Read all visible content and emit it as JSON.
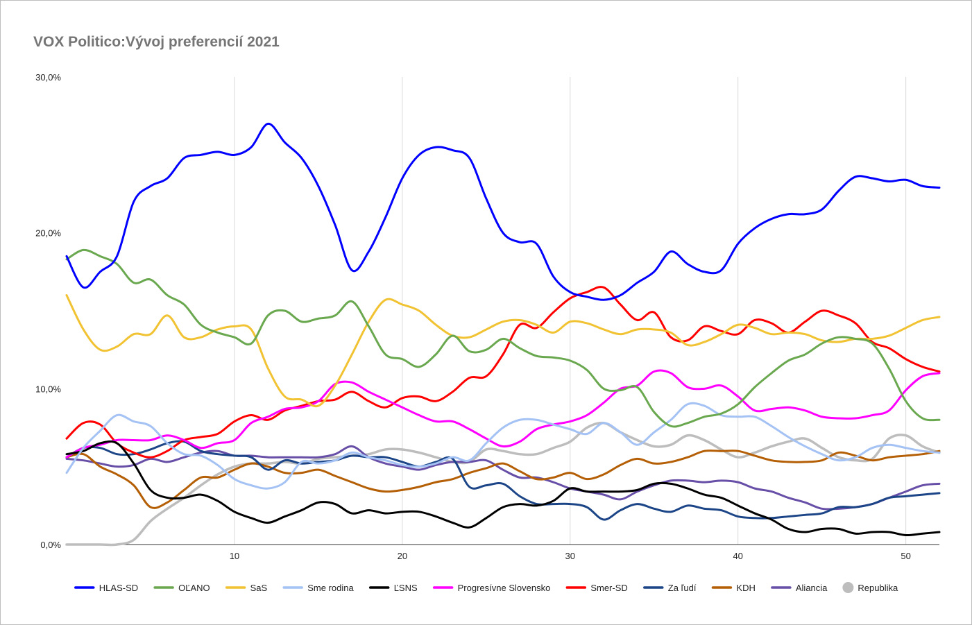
{
  "chart_data": {
    "type": "line",
    "title": "VOX Politico:Vývoj preferencií 2021",
    "xlabel": "",
    "ylabel": "",
    "xlim": [
      0,
      52
    ],
    "ylim": [
      0,
      30
    ],
    "x_ticks": [
      "10",
      "20",
      "30",
      "40",
      "50"
    ],
    "y_ticks": [
      "0,0%",
      "10,0%",
      "20,0%",
      "30,0%"
    ],
    "grid": "vertical",
    "legend_position": "bottom",
    "series": [
      {
        "name": "HLAS-SD",
        "color": "#0000ff",
        "marker": "line",
        "x": [
          0,
          1,
          2,
          3,
          4,
          5,
          6,
          7,
          8,
          9,
          10,
          11,
          12,
          13,
          14,
          15,
          16,
          17,
          18,
          19,
          20,
          21,
          22,
          23,
          24,
          25,
          26,
          27,
          28,
          29,
          30,
          31,
          32,
          33,
          34,
          35,
          36,
          37,
          38,
          39,
          40,
          41,
          42,
          43,
          44,
          45,
          46,
          47,
          48,
          49,
          50,
          51,
          52
        ],
        "y": [
          18.5,
          16.5,
          17.5,
          18.5,
          22,
          23,
          23.5,
          24.8,
          25,
          25.2,
          25,
          25.5,
          27,
          25.8,
          24.8,
          23,
          20.5,
          17.6,
          18.8,
          21,
          23.5,
          25,
          25.5,
          25.3,
          24.8,
          22.2,
          20,
          19.4,
          19.3,
          17.2,
          16.2,
          15.9,
          15.7,
          16,
          16.8,
          17.5,
          18.8,
          18,
          17.5,
          17.6,
          19.3,
          20.3,
          20.9,
          21.2,
          21.2,
          21.5,
          22.7,
          23.6,
          23.5,
          23.3,
          23.4,
          23,
          22.9
        ]
      },
      {
        "name": "OĽANO",
        "color": "#6aa84f",
        "marker": "line",
        "x": [
          0,
          1,
          2,
          3,
          4,
          5,
          6,
          7,
          8,
          9,
          10,
          11,
          12,
          13,
          14,
          15,
          16,
          17,
          18,
          19,
          20,
          21,
          22,
          23,
          24,
          25,
          26,
          27,
          28,
          29,
          30,
          31,
          32,
          33,
          34,
          35,
          36,
          37,
          38,
          39,
          40,
          41,
          42,
          43,
          44,
          45,
          46,
          47,
          48,
          49,
          50,
          51,
          52
        ],
        "y": [
          18.3,
          18.9,
          18.5,
          18,
          16.8,
          17,
          16,
          15.4,
          14.1,
          13.6,
          13.3,
          12.9,
          14.7,
          15,
          14.3,
          14.5,
          14.7,
          15.6,
          14,
          12.2,
          11.9,
          11.4,
          12.2,
          13.4,
          12.4,
          12.5,
          13.2,
          12.6,
          12.1,
          12,
          11.8,
          11.2,
          10,
          9.9,
          10.1,
          8.5,
          7.6,
          7.8,
          8.2,
          8.4,
          9,
          10.1,
          11,
          11.8,
          12.2,
          12.9,
          13.3,
          13.2,
          12.9,
          11.3,
          9.2,
          8.1,
          8
        ]
      },
      {
        "name": "SaS",
        "color": "#f1c232",
        "marker": "line",
        "x": [
          0,
          1,
          2,
          3,
          4,
          5,
          6,
          7,
          8,
          9,
          10,
          11,
          12,
          13,
          14,
          15,
          16,
          17,
          18,
          19,
          20,
          21,
          22,
          23,
          24,
          25,
          26,
          27,
          28,
          29,
          30,
          31,
          32,
          33,
          34,
          35,
          36,
          37,
          38,
          39,
          40,
          41,
          42,
          43,
          44,
          45,
          46,
          47,
          48,
          49,
          50,
          51,
          52
        ],
        "y": [
          16,
          13.8,
          12.5,
          12.7,
          13.5,
          13.5,
          14.7,
          13.3,
          13.3,
          13.8,
          14,
          13.8,
          11.3,
          9.5,
          9.3,
          8.9,
          10.2,
          12.2,
          14.3,
          15.7,
          15.4,
          15,
          14.1,
          13.4,
          13.3,
          13.8,
          14.3,
          14.4,
          14.1,
          13.6,
          14.3,
          14.2,
          13.8,
          13.5,
          13.8,
          13.8,
          13.6,
          12.8,
          13,
          13.5,
          14.1,
          13.9,
          13.5,
          13.6,
          13.5,
          13.1,
          13,
          13.2,
          13.2,
          13.4,
          13.9,
          14.4,
          14.6
        ]
      },
      {
        "name": "Sme rodina",
        "color": "#a4c2f4",
        "marker": "line",
        "x": [
          0,
          1,
          2,
          3,
          4,
          5,
          6,
          7,
          8,
          9,
          10,
          11,
          12,
          13,
          14,
          15,
          16,
          17,
          18,
          19,
          20,
          21,
          22,
          23,
          24,
          25,
          26,
          27,
          28,
          29,
          30,
          31,
          32,
          33,
          34,
          35,
          36,
          37,
          38,
          39,
          40,
          41,
          42,
          43,
          44,
          45,
          46,
          47,
          48,
          49,
          50,
          51,
          52
        ],
        "y": [
          4.6,
          6.2,
          7.3,
          8.3,
          7.9,
          7.6,
          6.5,
          5.8,
          5.7,
          5.1,
          4.2,
          3.8,
          3.6,
          4,
          5.3,
          5.2,
          5.4,
          5.9,
          5.6,
          5.4,
          5.1,
          5,
          5.2,
          5.6,
          5.4,
          6.5,
          7.5,
          8,
          8,
          7.7,
          7.4,
          7.1,
          7.8,
          7.2,
          6.4,
          7.2,
          8,
          9,
          8.9,
          8.3,
          8.2,
          8.2,
          7.6,
          6.9,
          6.3,
          5.8,
          5.4,
          5.6,
          6.2,
          6.4,
          6.2,
          6,
          5.9
        ]
      },
      {
        "name": "ĽSNS",
        "color": "#000000",
        "marker": "line",
        "x": [
          0,
          1,
          2,
          3,
          4,
          5,
          6,
          7,
          8,
          9,
          10,
          11,
          12,
          13,
          14,
          15,
          16,
          17,
          18,
          19,
          20,
          21,
          22,
          23,
          24,
          25,
          26,
          27,
          28,
          29,
          30,
          31,
          32,
          33,
          34,
          35,
          36,
          37,
          38,
          39,
          40,
          41,
          42,
          43,
          44,
          45,
          46,
          47,
          48,
          49,
          50,
          51,
          52
        ],
        "y": [
          5.8,
          6,
          6.5,
          6.5,
          5.2,
          3.5,
          3,
          3,
          3.2,
          2.8,
          2.1,
          1.7,
          1.4,
          1.8,
          2.2,
          2.7,
          2.6,
          2,
          2.2,
          2,
          2.1,
          2.1,
          1.8,
          1.4,
          1.1,
          1.7,
          2.4,
          2.6,
          2.5,
          2.8,
          3.6,
          3.4,
          3.4,
          3.4,
          3.5,
          3.9,
          3.9,
          3.6,
          3.2,
          3,
          2.5,
          2,
          1.6,
          1,
          0.8,
          1,
          1,
          0.7,
          0.8,
          0.8,
          0.6,
          0.7,
          0.8
        ]
      },
      {
        "name": "Progresívne Slovensko",
        "color": "#ff00ff",
        "marker": "line",
        "x": [
          0,
          1,
          2,
          3,
          4,
          5,
          6,
          7,
          8,
          9,
          10,
          11,
          12,
          13,
          14,
          15,
          16,
          17,
          18,
          19,
          20,
          21,
          22,
          23,
          24,
          25,
          26,
          27,
          28,
          29,
          30,
          31,
          32,
          33,
          34,
          35,
          36,
          37,
          38,
          39,
          40,
          41,
          42,
          43,
          44,
          45,
          46,
          47,
          48,
          49,
          50,
          51,
          52
        ],
        "y": [
          5.6,
          6.2,
          6.4,
          6.7,
          6.7,
          6.7,
          7,
          6.7,
          6.2,
          6.5,
          6.7,
          7.8,
          8.2,
          8.7,
          8.8,
          9.2,
          10.3,
          10.4,
          9.8,
          9.3,
          8.8,
          8.3,
          7.9,
          7.9,
          7.4,
          6.8,
          6.3,
          6.6,
          7.4,
          7.7,
          7.9,
          8.3,
          9.1,
          10,
          10.2,
          11.1,
          11,
          10.1,
          10,
          10.2,
          9.5,
          8.6,
          8.7,
          8.8,
          8.6,
          8.2,
          8.1,
          8.1,
          8.3,
          8.6,
          9.9,
          10.8,
          11
        ]
      },
      {
        "name": "Smer-SD",
        "color": "#ff0000",
        "marker": "line",
        "x": [
          0,
          1,
          2,
          3,
          4,
          5,
          6,
          7,
          8,
          9,
          10,
          11,
          12,
          13,
          14,
          15,
          16,
          17,
          18,
          19,
          20,
          21,
          22,
          23,
          24,
          25,
          26,
          27,
          28,
          29,
          30,
          31,
          32,
          33,
          34,
          35,
          36,
          37,
          38,
          39,
          40,
          41,
          42,
          43,
          44,
          45,
          46,
          47,
          48,
          49,
          50,
          51,
          52
        ],
        "y": [
          6.8,
          7.8,
          7.7,
          6.5,
          5.9,
          5.6,
          6,
          6.7,
          6.9,
          7.1,
          7.9,
          8.3,
          8,
          8.6,
          8.9,
          9.2,
          9.3,
          9.8,
          9.2,
          8.8,
          9.4,
          9.5,
          9.2,
          9.8,
          10.7,
          10.8,
          12.2,
          14.1,
          13.9,
          14.9,
          15.8,
          16.2,
          16.5,
          15.4,
          14.4,
          14.9,
          13.3,
          13.1,
          14,
          13.7,
          13.5,
          14.4,
          14.2,
          13.6,
          14.3,
          15,
          14.7,
          14.2,
          13,
          12.6,
          11.9,
          11.4,
          11.1
        ]
      },
      {
        "name": "Za ľudí",
        "color": "#1c4587",
        "marker": "line",
        "x": [
          0,
          1,
          2,
          3,
          4,
          5,
          6,
          7,
          8,
          9,
          10,
          11,
          12,
          13,
          14,
          15,
          16,
          17,
          18,
          19,
          20,
          21,
          22,
          23,
          24,
          25,
          26,
          27,
          28,
          29,
          30,
          31,
          32,
          33,
          34,
          35,
          36,
          37,
          38,
          39,
          40,
          41,
          42,
          43,
          44,
          45,
          46,
          47,
          48,
          49,
          50,
          51,
          52
        ],
        "y": [
          5.6,
          6.2,
          6.2,
          5.8,
          5.8,
          6.1,
          6.5,
          6.6,
          6,
          5.8,
          5.7,
          5.6,
          4.8,
          5.4,
          5.2,
          5.3,
          5.4,
          5.7,
          5.6,
          5.6,
          5.3,
          5,
          5.3,
          5.5,
          3.7,
          3.8,
          3.9,
          3.1,
          2.6,
          2.6,
          2.6,
          2.4,
          1.6,
          2.2,
          2.6,
          2.3,
          2.1,
          2.5,
          2.3,
          2.2,
          1.8,
          1.7,
          1.7,
          1.8,
          1.9,
          2,
          2.4,
          2.4,
          2.6,
          3,
          3.1,
          3.2,
          3.3
        ]
      },
      {
        "name": "KDH",
        "color": "#b45f06",
        "marker": "line",
        "x": [
          0,
          1,
          2,
          3,
          4,
          5,
          6,
          7,
          8,
          9,
          10,
          11,
          12,
          13,
          14,
          15,
          16,
          17,
          18,
          19,
          20,
          21,
          22,
          23,
          24,
          25,
          26,
          27,
          28,
          29,
          30,
          31,
          32,
          33,
          34,
          35,
          36,
          37,
          38,
          39,
          40,
          41,
          42,
          43,
          44,
          45,
          46,
          47,
          48,
          49,
          50,
          51,
          52
        ],
        "y": [
          5.6,
          5.8,
          5,
          4.5,
          3.8,
          2.4,
          2.7,
          3.5,
          4.3,
          4.3,
          4.8,
          5.2,
          5,
          4.6,
          4.6,
          4.8,
          4.4,
          4,
          3.6,
          3.4,
          3.5,
          3.7,
          4,
          4.2,
          4.6,
          4.9,
          5.2,
          4.7,
          4.2,
          4.3,
          4.6,
          4.2,
          4.5,
          5.1,
          5.5,
          5.2,
          5.3,
          5.6,
          6,
          6,
          6,
          5.7,
          5.4,
          5.3,
          5.3,
          5.4,
          5.9,
          5.7,
          5.4,
          5.6,
          5.7,
          5.8,
          6
        ]
      },
      {
        "name": "Aliancia",
        "color": "#674ea7",
        "marker": "line",
        "x": [
          0,
          1,
          2,
          3,
          4,
          5,
          6,
          7,
          8,
          9,
          10,
          11,
          12,
          13,
          14,
          15,
          16,
          17,
          18,
          19,
          20,
          21,
          22,
          23,
          24,
          25,
          26,
          27,
          28,
          29,
          30,
          31,
          32,
          33,
          34,
          35,
          36,
          37,
          38,
          39,
          40,
          41,
          42,
          43,
          44,
          45,
          46,
          47,
          48,
          49,
          50,
          51,
          52
        ],
        "y": [
          5.5,
          5.4,
          5.2,
          5,
          5.1,
          5.5,
          5.3,
          5.6,
          5.9,
          6,
          5.7,
          5.7,
          5.6,
          5.6,
          5.6,
          5.6,
          5.8,
          6.3,
          5.6,
          5.2,
          5,
          4.8,
          5.1,
          5.3,
          5.3,
          5.4,
          4.8,
          4.3,
          4.3,
          4,
          3.6,
          3.4,
          3.2,
          2.9,
          3.4,
          3.8,
          4.1,
          4.1,
          4,
          4.1,
          4,
          3.6,
          3.4,
          3,
          2.7,
          2.3,
          2.3,
          2.4,
          2.6,
          3,
          3.4,
          3.8,
          3.9
        ]
      },
      {
        "name": "Republika",
        "color": "#bdbdbd",
        "marker": "circle",
        "x": [
          0,
          1,
          2,
          3,
          4,
          5,
          6,
          7,
          8,
          9,
          10,
          11,
          12,
          13,
          14,
          15,
          16,
          17,
          18,
          19,
          20,
          21,
          22,
          23,
          24,
          25,
          26,
          27,
          28,
          29,
          30,
          31,
          32,
          33,
          34,
          35,
          36,
          37,
          38,
          39,
          40,
          41,
          42,
          43,
          44,
          45,
          46,
          47,
          48,
          49,
          50,
          51,
          52
        ],
        "y": [
          0,
          0,
          0,
          0,
          0.3,
          1.5,
          2.3,
          3,
          3.8,
          4.5,
          5,
          5.2,
          5.2,
          5.3,
          5.2,
          5.5,
          5.6,
          5.7,
          5.8,
          6.1,
          6.1,
          5.9,
          5.6,
          5.3,
          5.3,
          6.1,
          6,
          5.8,
          5.8,
          6.2,
          6.6,
          7.5,
          7.8,
          7.2,
          6.7,
          6.3,
          6.4,
          7,
          6.7,
          6.1,
          5.6,
          5.9,
          6.3,
          6.6,
          6.8,
          6.2,
          5.6,
          5.4,
          5.5,
          6.8,
          7,
          6.3,
          5.9
        ]
      }
    ]
  }
}
